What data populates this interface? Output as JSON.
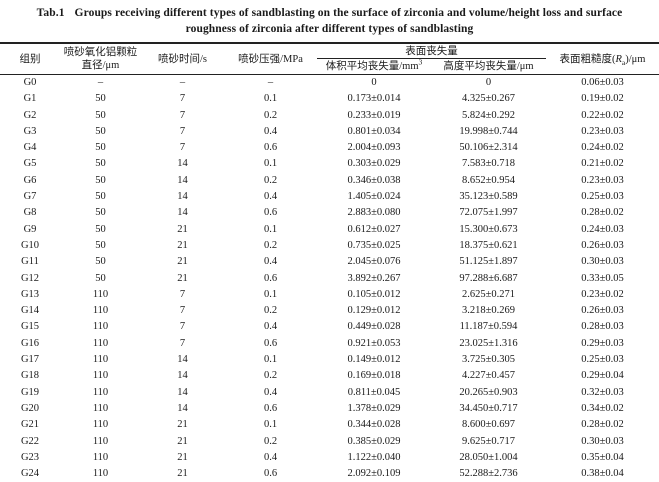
{
  "title": {
    "tag": "Tab.1",
    "line1": "Groups receiving different types of sandblasting on the surface of zirconia and volume/height loss and surface",
    "line2": "roughness of zirconia after different types of sandblasting"
  },
  "table": {
    "headers": {
      "group": "组别",
      "particle_line1": "喷砂氧化铝颗粒",
      "particle_line2": "直径/μm",
      "time": "喷砂时间/s",
      "pressure": "喷砂压强/MPa",
      "surface_loss": "表面丧失量",
      "volume_loss_text": "体积平均丧失量/mm",
      "volume_loss_sup": "3",
      "height_loss": "高度平均丧失量/μm",
      "roughness_prefix": "表面粗糙度(",
      "roughness_symbol": "R",
      "roughness_sub": "a",
      "roughness_suffix": ")/μm"
    },
    "column_keys": [
      "group",
      "particle-diameter",
      "time",
      "pressure",
      "volume-loss",
      "height-loss",
      "roughness"
    ],
    "rows": [
      [
        "G0",
        "–",
        "–",
        "–",
        "0",
        "0",
        "0.06±0.03"
      ],
      [
        "G1",
        "50",
        "7",
        "0.1",
        "0.173±0.014",
        "4.325±0.267",
        "0.19±0.02"
      ],
      [
        "G2",
        "50",
        "7",
        "0.2",
        "0.233±0.019",
        "5.824±0.292",
        "0.22±0.02"
      ],
      [
        "G3",
        "50",
        "7",
        "0.4",
        "0.801±0.034",
        "19.998±0.744",
        "0.23±0.03"
      ],
      [
        "G4",
        "50",
        "7",
        "0.6",
        "2.004±0.093",
        "50.106±2.314",
        "0.24±0.02"
      ],
      [
        "G5",
        "50",
        "14",
        "0.1",
        "0.303±0.029",
        "7.583±0.718",
        "0.21±0.02"
      ],
      [
        "G6",
        "50",
        "14",
        "0.2",
        "0.346±0.038",
        "8.652±0.954",
        "0.23±0.03"
      ],
      [
        "G7",
        "50",
        "14",
        "0.4",
        "1.405±0.024",
        "35.123±0.589",
        "0.25±0.03"
      ],
      [
        "G8",
        "50",
        "14",
        "0.6",
        "2.883±0.080",
        "72.075±1.997",
        "0.28±0.02"
      ],
      [
        "G9",
        "50",
        "21",
        "0.1",
        "0.612±0.027",
        "15.300±0.673",
        "0.24±0.03"
      ],
      [
        "G10",
        "50",
        "21",
        "0.2",
        "0.735±0.025",
        "18.375±0.621",
        "0.26±0.03"
      ],
      [
        "G11",
        "50",
        "21",
        "0.4",
        "2.045±0.076",
        "51.125±1.897",
        "0.30±0.03"
      ],
      [
        "G12",
        "50",
        "21",
        "0.6",
        "3.892±0.267",
        "97.288±6.687",
        "0.33±0.05"
      ],
      [
        "G13",
        "110",
        "7",
        "0.1",
        "0.105±0.012",
        "2.625±0.271",
        "0.23±0.02"
      ],
      [
        "G14",
        "110",
        "7",
        "0.2",
        "0.129±0.012",
        "3.218±0.269",
        "0.26±0.03"
      ],
      [
        "G15",
        "110",
        "7",
        "0.4",
        "0.449±0.028",
        "11.187±0.594",
        "0.28±0.03"
      ],
      [
        "G16",
        "110",
        "7",
        "0.6",
        "0.921±0.053",
        "23.025±1.316",
        "0.29±0.03"
      ],
      [
        "G17",
        "110",
        "14",
        "0.1",
        "0.149±0.012",
        "3.725±0.305",
        "0.25±0.03"
      ],
      [
        "G18",
        "110",
        "14",
        "0.2",
        "0.169±0.018",
        "4.227±0.457",
        "0.29±0.04"
      ],
      [
        "G19",
        "110",
        "14",
        "0.4",
        "0.811±0.045",
        "20.265±0.903",
        "0.32±0.03"
      ],
      [
        "G20",
        "110",
        "14",
        "0.6",
        "1.378±0.029",
        "34.450±0.717",
        "0.34±0.02"
      ],
      [
        "G21",
        "110",
        "21",
        "0.1",
        "0.344±0.028",
        "8.600±0.697",
        "0.28±0.02"
      ],
      [
        "G22",
        "110",
        "21",
        "0.2",
        "0.385±0.029",
        "9.625±0.717",
        "0.30±0.03"
      ],
      [
        "G23",
        "110",
        "21",
        "0.4",
        "1.122±0.040",
        "28.050±1.004",
        "0.35±0.04"
      ],
      [
        "G24",
        "110",
        "21",
        "0.6",
        "2.092±0.109",
        "52.288±2.736",
        "0.38±0.04"
      ]
    ]
  }
}
